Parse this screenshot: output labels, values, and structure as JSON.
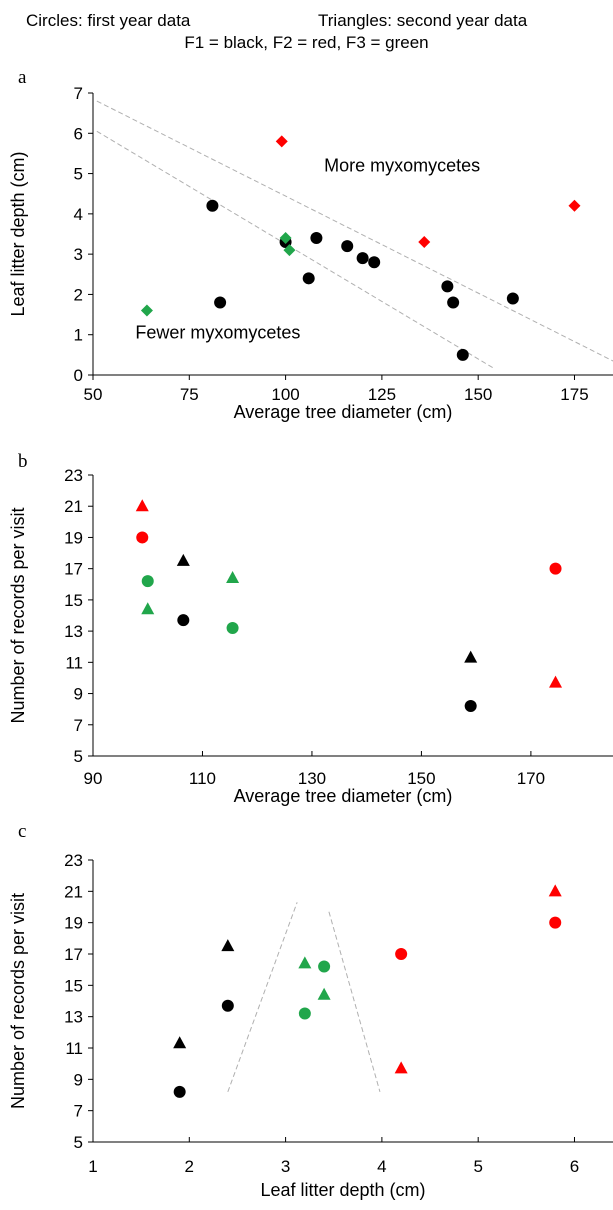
{
  "header": {
    "line1_left": "Circles: first year data",
    "line1_right": "Triangles: second year data",
    "line2": "F1 = black, F2 = red, F3 = green"
  },
  "colors": {
    "F1": "#000000",
    "F2": "#ff0000",
    "F3": "#21a64b",
    "guide": "#b0b0b0"
  },
  "chart_data": [
    {
      "panel_label": "a",
      "type": "scatter",
      "xlabel": "Average tree diameter (cm)",
      "ylabel": "Leaf litter depth (cm)",
      "xlim": [
        50,
        185
      ],
      "ylim": [
        0,
        7
      ],
      "xticks": [
        50,
        75,
        100,
        125,
        150,
        175
      ],
      "yticks": [
        0,
        1,
        2,
        3,
        4,
        5,
        6,
        7
      ],
      "annotations": [
        {
          "text": "More myxomycetes",
          "x": 110,
          "y": 5.05
        },
        {
          "text": "Fewer myxomycetes",
          "x": 61,
          "y": 0.9
        }
      ],
      "guide_lines": [
        {
          "x": [
            51,
            186
          ],
          "y": [
            6.8,
            0.3
          ]
        },
        {
          "x": [
            51,
            154
          ],
          "y": [
            6.05,
            0.17
          ]
        }
      ],
      "series": [
        {
          "color": "F1",
          "marker": "circle",
          "points": [
            [
              81,
              4.2
            ],
            [
              83,
              1.8
            ],
            [
              100,
              3.3
            ],
            [
              106,
              2.4
            ],
            [
              108,
              3.4
            ],
            [
              116,
              3.2
            ],
            [
              120,
              2.9
            ],
            [
              123,
              2.8
            ],
            [
              142,
              2.2
            ],
            [
              143.5,
              1.8
            ],
            [
              146,
              0.5
            ],
            [
              159,
              1.9
            ]
          ]
        },
        {
          "color": "F2",
          "marker": "diamond",
          "points": [
            [
              99,
              5.8
            ],
            [
              136,
              3.3
            ],
            [
              175,
              4.2
            ]
          ]
        },
        {
          "color": "F3",
          "marker": "diamond",
          "points": [
            [
              64,
              1.6
            ],
            [
              100,
              3.4
            ],
            [
              101,
              3.1
            ]
          ]
        }
      ]
    },
    {
      "panel_label": "b",
      "type": "scatter",
      "xlabel": "Average tree diameter (cm)",
      "ylabel": "Number of records per visit",
      "xlim": [
        90,
        185
      ],
      "ylim": [
        5,
        23
      ],
      "xticks": [
        90,
        110,
        130,
        150,
        170
      ],
      "yticks": [
        5,
        7,
        9,
        11,
        13,
        15,
        17,
        19,
        21,
        23
      ],
      "series": [
        {
          "color": "F1",
          "marker": "circle",
          "points": [
            [
              106.5,
              13.7
            ],
            [
              159,
              8.2
            ]
          ]
        },
        {
          "color": "F1",
          "marker": "triangle",
          "points": [
            [
              106.5,
              17.5
            ],
            [
              159,
              11.3
            ]
          ]
        },
        {
          "color": "F2",
          "marker": "circle",
          "points": [
            [
              99,
              19.0
            ],
            [
              174.5,
              17.0
            ]
          ]
        },
        {
          "color": "F2",
          "marker": "triangle",
          "points": [
            [
              99,
              21.0
            ],
            [
              174.5,
              9.7
            ]
          ]
        },
        {
          "color": "F3",
          "marker": "circle",
          "points": [
            [
              100,
              16.2
            ],
            [
              115.5,
              13.2
            ]
          ]
        },
        {
          "color": "F3",
          "marker": "triangle",
          "points": [
            [
              100,
              14.4
            ],
            [
              115.5,
              16.4
            ]
          ]
        }
      ]
    },
    {
      "panel_label": "c",
      "type": "scatter",
      "xlabel": "Leaf litter depth (cm)",
      "ylabel": "Number of records per visit",
      "xlim": [
        1,
        6.4
      ],
      "ylim": [
        5,
        23
      ],
      "xticks": [
        1,
        2,
        3,
        4,
        5,
        6
      ],
      "yticks": [
        5,
        7,
        9,
        11,
        13,
        15,
        17,
        19,
        21,
        23
      ],
      "guide_lines": [
        {
          "x": [
            2.4,
            3.12
          ],
          "y": [
            8.2,
            20.3
          ]
        },
        {
          "x": [
            3.45,
            3.98
          ],
          "y": [
            19.7,
            8.2
          ]
        }
      ],
      "series": [
        {
          "color": "F1",
          "marker": "circle",
          "points": [
            [
              1.9,
              8.2
            ],
            [
              2.4,
              13.7
            ]
          ]
        },
        {
          "color": "F1",
          "marker": "triangle",
          "points": [
            [
              1.9,
              11.3
            ],
            [
              2.4,
              17.5
            ]
          ]
        },
        {
          "color": "F2",
          "marker": "circle",
          "points": [
            [
              4.2,
              17.0
            ],
            [
              5.8,
              19.0
            ]
          ]
        },
        {
          "color": "F2",
          "marker": "triangle",
          "points": [
            [
              4.2,
              9.7
            ],
            [
              5.8,
              21.0
            ]
          ]
        },
        {
          "color": "F3",
          "marker": "circle",
          "points": [
            [
              3.2,
              13.2
            ],
            [
              3.4,
              16.2
            ]
          ]
        },
        {
          "color": "F3",
          "marker": "triangle",
          "points": [
            [
              3.2,
              16.4
            ],
            [
              3.4,
              14.4
            ]
          ]
        }
      ]
    }
  ]
}
